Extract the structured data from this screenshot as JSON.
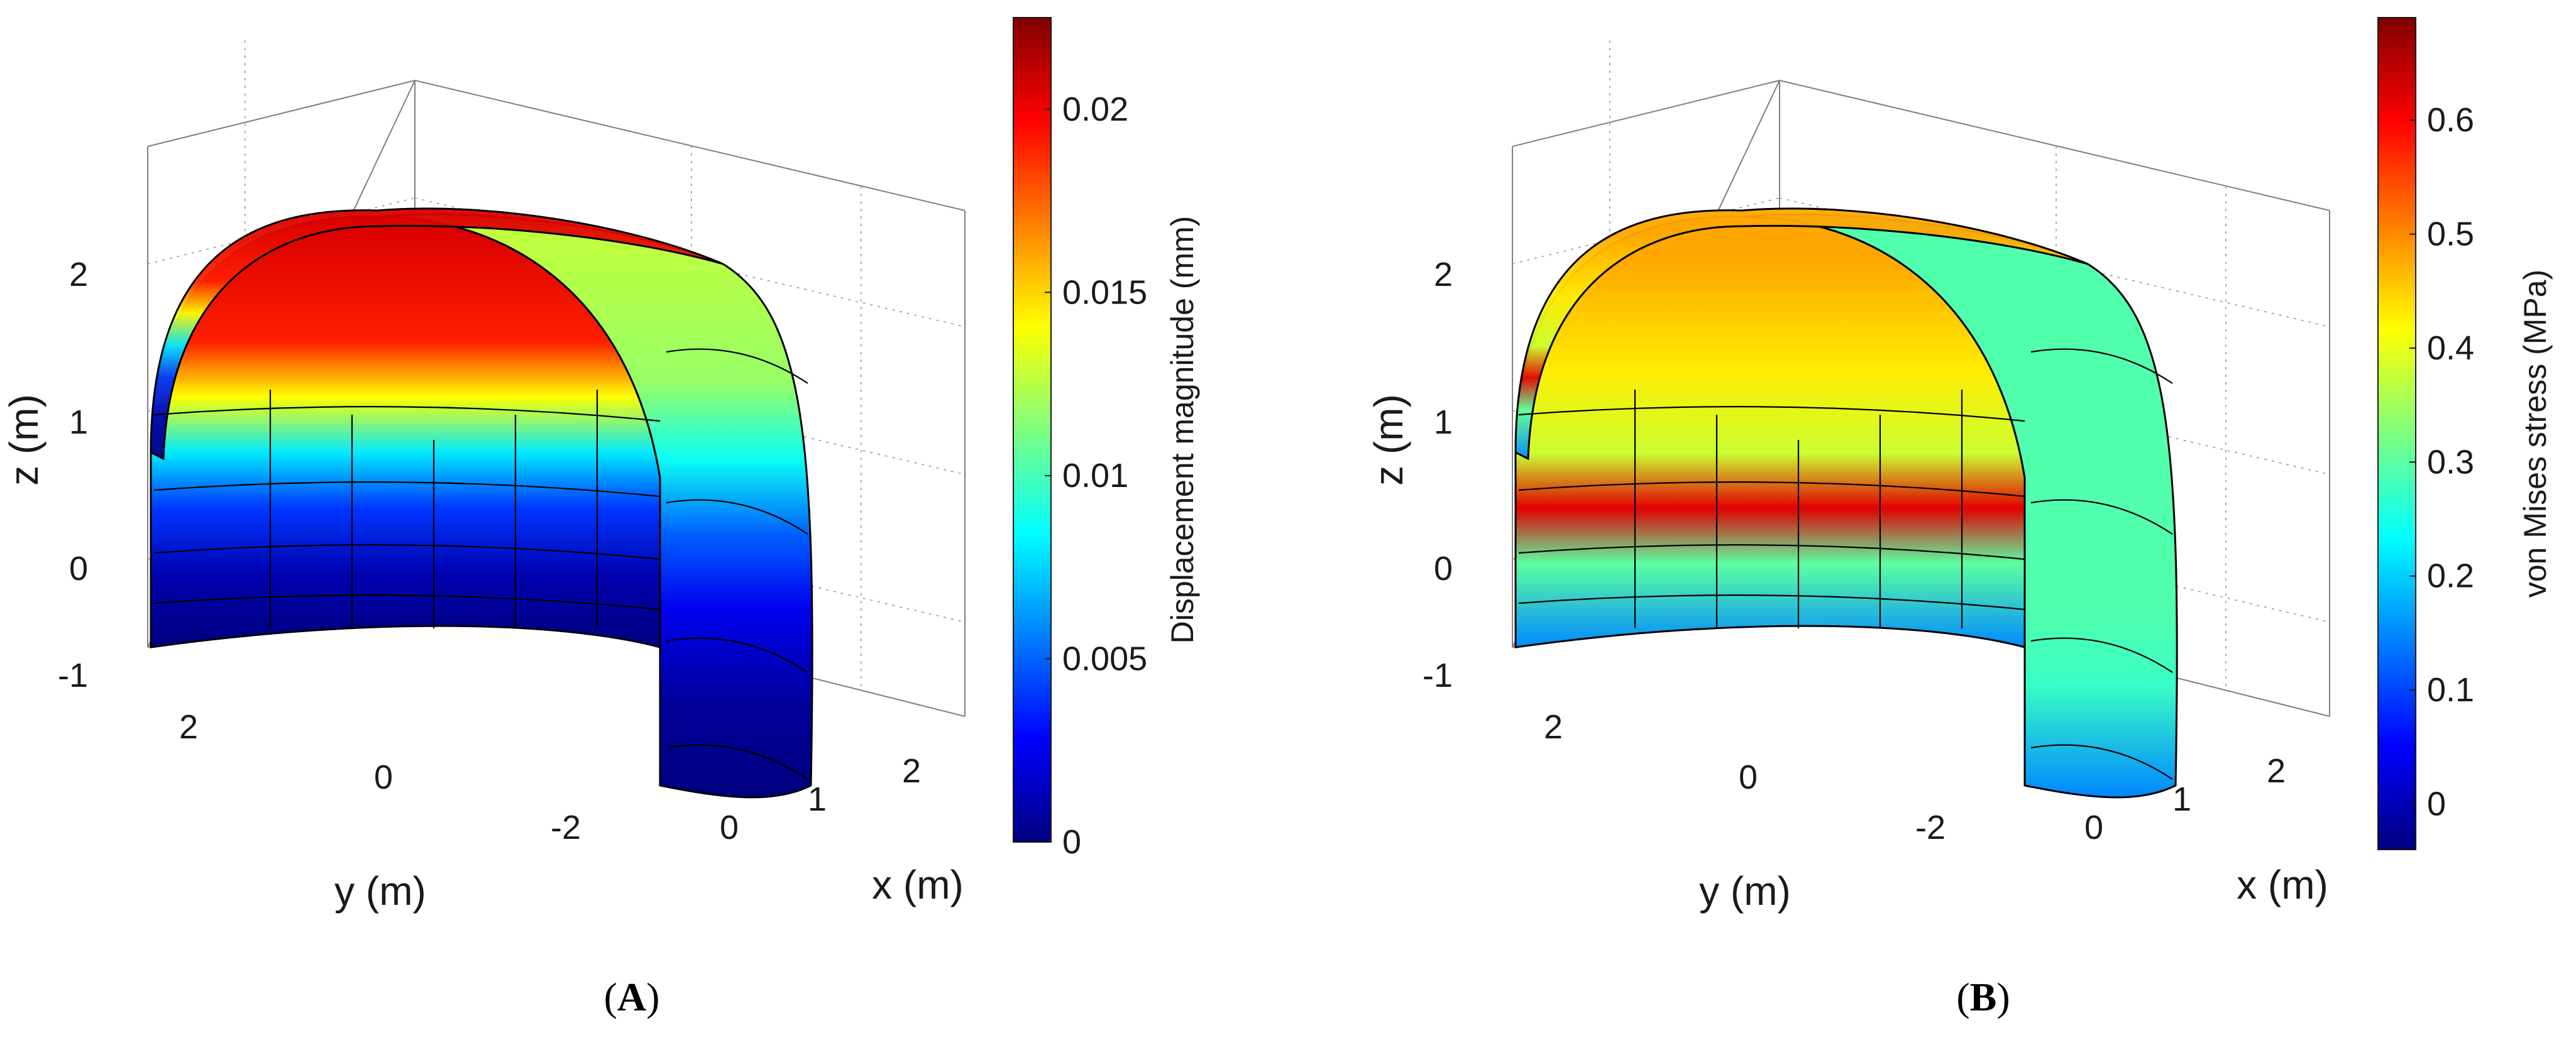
{
  "chart_data": [
    {
      "panel": "(A)",
      "panel_letter": "A",
      "type": "heatmap",
      "subtype": "3d-surface-tunnel-lining",
      "xlabel": "x (m)",
      "ylabel": "y (m)",
      "zlabel": "z (m)",
      "x_ticks": [
        "0",
        "1",
        "2"
      ],
      "y_ticks": [
        "2",
        "0",
        "-2"
      ],
      "z_ticks": [
        "2",
        "1",
        "0",
        "-1"
      ],
      "colorbar": {
        "label": "Displacement magnitude (mm)",
        "range": [
          0,
          0.0225
        ],
        "ticks": [
          "0.02",
          "0.015",
          "0.01",
          "0.005",
          "0"
        ],
        "tick_values": [
          0.02,
          0.015,
          0.01,
          0.005,
          0
        ],
        "colormap": "jet"
      },
      "field_profile": "displacement increases with height: near 0 at z=-1, ~0.004 at z=0, ~0.013 at z=0.8, ~0.02 at crown front, ~0.012 at crown rear",
      "color_bands": [
        {
          "z": -1.0,
          "value": 0.0
        },
        {
          "z": -0.5,
          "value": 0.001
        },
        {
          "z": 0.0,
          "value": 0.004
        },
        {
          "z": 0.4,
          "value": 0.008
        },
        {
          "z": 0.8,
          "value": 0.014
        },
        {
          "z": 1.2,
          "value": 0.019
        },
        {
          "z": 2.0,
          "value": 0.0205
        }
      ],
      "grid": true
    },
    {
      "panel": "(B)",
      "panel_letter": "B",
      "type": "heatmap",
      "subtype": "3d-surface-tunnel-lining",
      "xlabel": "x (m)",
      "ylabel": "y (m)",
      "zlabel": "z (m)",
      "x_ticks": [
        "0",
        "1",
        "2"
      ],
      "y_ticks": [
        "2",
        "0",
        "-2"
      ],
      "z_ticks": [
        "2",
        "1",
        "0",
        "-1"
      ],
      "colorbar": {
        "label": "von Mises stress (MPa)",
        "range": [
          -0.04,
          0.69
        ],
        "ticks": [
          "0.6",
          "0.5",
          "0.4",
          "0.3",
          "0.2",
          "0.1",
          "0"
        ],
        "tick_values": [
          0.6,
          0.5,
          0.4,
          0.3,
          0.2,
          0.1,
          0
        ],
        "colormap": "jet"
      },
      "field_profile": "stress peaks (~0.6) in a horizontal band near z=0 on the inner face, ~0.45 at the crown inside, ~0.2-0.3 on outer shell, lowest near the bottom ends",
      "color_bands": [
        {
          "z": -1.0,
          "value": 0.15
        },
        {
          "z": -0.4,
          "value": 0.3
        },
        {
          "z": 0.0,
          "value": 0.62
        },
        {
          "z": 0.4,
          "value": 0.38
        },
        {
          "z": 1.0,
          "value": 0.43
        },
        {
          "z": 1.8,
          "value": 0.48
        }
      ],
      "grid": true
    }
  ],
  "colors": {
    "jet": [
      "#00007f",
      "#0000ff",
      "#007fff",
      "#00ffff",
      "#7fff7f",
      "#ffff00",
      "#ff7f00",
      "#ff0000",
      "#7f0000"
    ],
    "mesh_line": "#000000",
    "grid_line": "#7f7f7f"
  }
}
